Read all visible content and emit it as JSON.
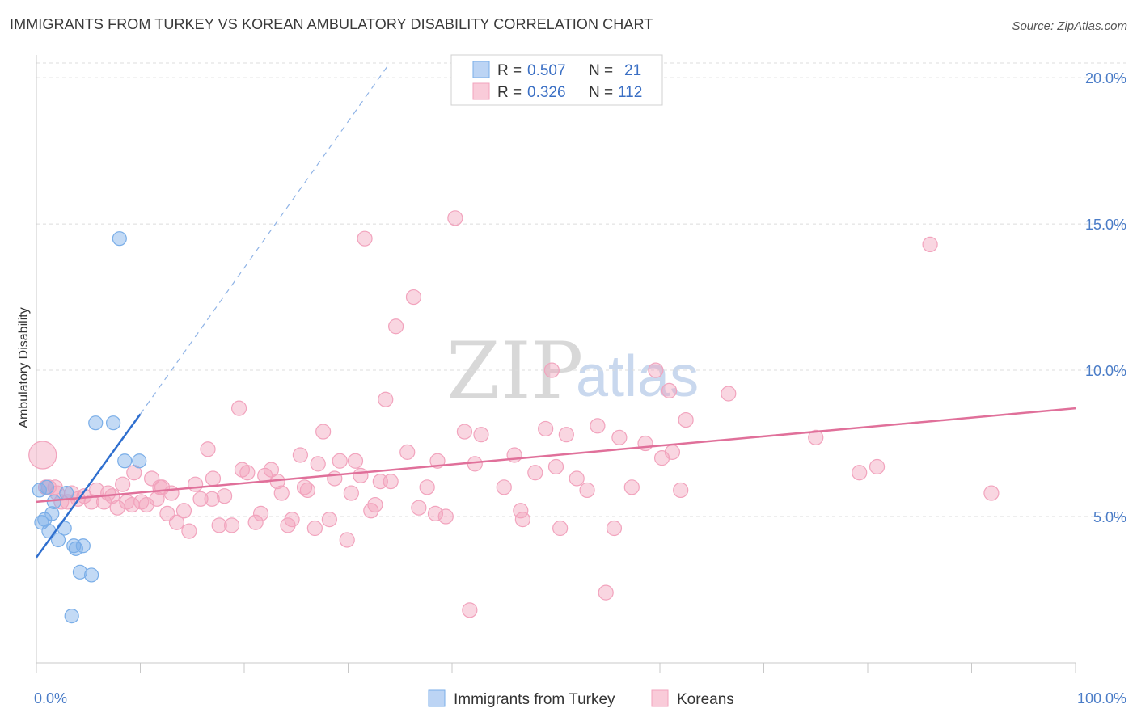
{
  "title": "IMMIGRANTS FROM TURKEY VS KOREAN AMBULATORY DISABILITY CORRELATION CHART",
  "source": "Source: ZipAtlas.com",
  "watermark": {
    "zip": "ZIP",
    "atlas": "atlas"
  },
  "chart_data": {
    "type": "scatter",
    "ylabel": "Ambulatory Disability",
    "xlabel": "",
    "xlim": [
      0,
      100
    ],
    "ylim": [
      0,
      20.5
    ],
    "x_tick_labels": [
      "0.0%",
      "100.0%"
    ],
    "y_ticks": [
      5,
      10,
      15,
      20
    ],
    "y_tick_labels": [
      "5.0%",
      "10.0%",
      "15.0%",
      "20.0%"
    ],
    "grid": true,
    "legend_position": "top-center",
    "colors": {
      "turkey": "#7aaee8",
      "korean": "#f2a3bd",
      "turkey_line": "#2f6fcf",
      "korean_line": "#e0709a"
    },
    "series": [
      {
        "name": "Immigrants from Turkey",
        "r_label": "R =",
        "r": "0.507",
        "n_label": "N =",
        "n": "21",
        "trend": {
          "x0": 0,
          "y0": 3.6,
          "x1": 10,
          "y1": 8.5,
          "dash_x1": 34,
          "dash_y1": 20.5
        },
        "points": [
          [
            0.3,
            5.9
          ],
          [
            0.5,
            4.8
          ],
          [
            0.8,
            4.9
          ],
          [
            1.2,
            4.5
          ],
          [
            1.5,
            5.1
          ],
          [
            1.7,
            5.5
          ],
          [
            2.1,
            4.2
          ],
          [
            2.7,
            4.6
          ],
          [
            2.9,
            5.8
          ],
          [
            3.6,
            4.0
          ],
          [
            3.8,
            3.9
          ],
          [
            4.5,
            4.0
          ],
          [
            4.2,
            3.1
          ],
          [
            5.3,
            3.0
          ],
          [
            3.4,
            1.6
          ],
          [
            5.7,
            8.2
          ],
          [
            7.4,
            8.2
          ],
          [
            8.5,
            6.9
          ],
          [
            9.9,
            6.9
          ],
          [
            8.0,
            14.5
          ],
          [
            1.0,
            6.0
          ]
        ]
      },
      {
        "name": "Koreans",
        "r_label": "R =",
        "r": "0.326",
        "n_label": "N =",
        "n": "112",
        "trend": {
          "x0": 0,
          "y0": 5.5,
          "x1": 100,
          "y1": 8.7
        },
        "points": [
          [
            0.6,
            7.1
          ],
          [
            1.2,
            6.0
          ],
          [
            1.8,
            6.0
          ],
          [
            2.4,
            5.5
          ],
          [
            3.4,
            5.8
          ],
          [
            4.0,
            5.6
          ],
          [
            4.6,
            5.7
          ],
          [
            5.3,
            5.5
          ],
          [
            5.8,
            5.9
          ],
          [
            6.5,
            5.5
          ],
          [
            7.3,
            5.7
          ],
          [
            7.8,
            5.3
          ],
          [
            8.3,
            6.1
          ],
          [
            8.7,
            5.5
          ],
          [
            9.4,
            6.5
          ],
          [
            10.1,
            5.5
          ],
          [
            10.6,
            5.4
          ],
          [
            11.1,
            6.3
          ],
          [
            11.6,
            5.6
          ],
          [
            12.1,
            6.0
          ],
          [
            12.6,
            5.1
          ],
          [
            13.0,
            5.8
          ],
          [
            13.5,
            4.8
          ],
          [
            14.2,
            5.2
          ],
          [
            14.7,
            4.5
          ],
          [
            15.3,
            6.1
          ],
          [
            15.8,
            5.6
          ],
          [
            16.5,
            7.3
          ],
          [
            17.0,
            6.3
          ],
          [
            17.6,
            4.7
          ],
          [
            18.1,
            5.7
          ],
          [
            18.8,
            4.7
          ],
          [
            19.5,
            8.7
          ],
          [
            19.8,
            6.6
          ],
          [
            20.3,
            6.5
          ],
          [
            21.1,
            4.8
          ],
          [
            21.6,
            5.1
          ],
          [
            22.0,
            6.4
          ],
          [
            22.6,
            6.6
          ],
          [
            23.2,
            6.2
          ],
          [
            23.6,
            5.8
          ],
          [
            24.2,
            4.7
          ],
          [
            24.6,
            4.9
          ],
          [
            25.4,
            7.1
          ],
          [
            25.8,
            6.0
          ],
          [
            26.1,
            5.9
          ],
          [
            26.8,
            4.6
          ],
          [
            27.1,
            6.8
          ],
          [
            27.6,
            7.9
          ],
          [
            28.2,
            4.9
          ],
          [
            28.7,
            6.3
          ],
          [
            29.2,
            6.9
          ],
          [
            29.9,
            4.2
          ],
          [
            30.3,
            5.8
          ],
          [
            30.7,
            6.9
          ],
          [
            31.2,
            6.4
          ],
          [
            31.6,
            14.5
          ],
          [
            32.2,
            5.2
          ],
          [
            32.6,
            5.4
          ],
          [
            33.1,
            6.2
          ],
          [
            33.6,
            9.0
          ],
          [
            34.1,
            6.2
          ],
          [
            34.6,
            11.5
          ],
          [
            35.7,
            7.2
          ],
          [
            36.3,
            12.5
          ],
          [
            36.8,
            5.3
          ],
          [
            37.6,
            6.0
          ],
          [
            38.4,
            5.1
          ],
          [
            38.6,
            6.9
          ],
          [
            39.4,
            5.0
          ],
          [
            40.3,
            15.2
          ],
          [
            41.2,
            7.9
          ],
          [
            41.7,
            1.8
          ],
          [
            42.2,
            6.8
          ],
          [
            42.8,
            7.8
          ],
          [
            45.0,
            6.0
          ],
          [
            46.0,
            7.1
          ],
          [
            46.6,
            5.2
          ],
          [
            46.8,
            4.9
          ],
          [
            48.0,
            6.5
          ],
          [
            49.0,
            8.0
          ],
          [
            49.6,
            10.0
          ],
          [
            50.0,
            6.7
          ],
          [
            50.4,
            4.6
          ],
          [
            51.0,
            7.8
          ],
          [
            52.0,
            6.3
          ],
          [
            53.0,
            5.9
          ],
          [
            54.0,
            8.1
          ],
          [
            54.8,
            2.4
          ],
          [
            55.6,
            4.6
          ],
          [
            56.1,
            7.7
          ],
          [
            57.3,
            6.0
          ],
          [
            58.6,
            7.5
          ],
          [
            59.6,
            10.0
          ],
          [
            60.2,
            7.0
          ],
          [
            60.9,
            9.3
          ],
          [
            61.2,
            7.2
          ],
          [
            62.0,
            5.9
          ],
          [
            62.5,
            8.3
          ],
          [
            66.6,
            9.2
          ],
          [
            75.0,
            7.7
          ],
          [
            79.2,
            6.5
          ],
          [
            80.9,
            6.7
          ],
          [
            86.0,
            14.3
          ],
          [
            91.9,
            5.8
          ],
          [
            0.9,
            6.0
          ],
          [
            2.0,
            5.8
          ],
          [
            3.0,
            5.5
          ],
          [
            6.9,
            5.8
          ],
          [
            9.2,
            5.4
          ],
          [
            11.9,
            6.0
          ],
          [
            16.9,
            5.6
          ]
        ]
      }
    ]
  }
}
